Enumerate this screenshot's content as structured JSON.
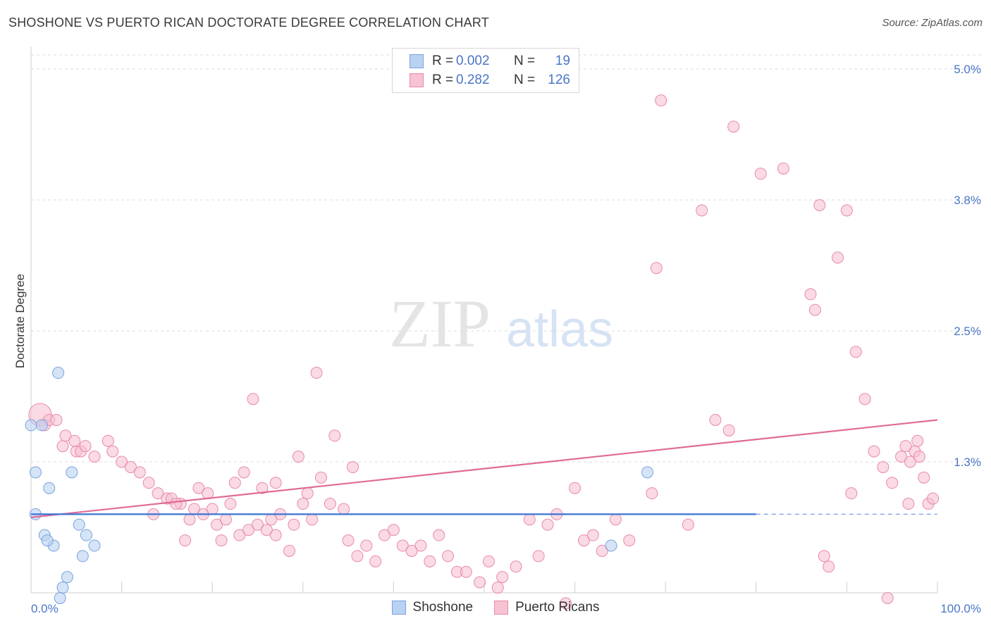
{
  "title": "SHOSHONE VS PUERTO RICAN DOCTORATE DEGREE CORRELATION CHART",
  "source": "Source: ZipAtlas.com",
  "watermark": {
    "zip": "ZIP",
    "atlas": "atlas"
  },
  "legend": {
    "rows": [
      {
        "r_label": "R =",
        "r_value": "0.002",
        "n_label": "N =",
        "n_value": "19"
      },
      {
        "r_label": "R =",
        "r_value": "0.282",
        "n_label": "N =",
        "n_value": "126"
      }
    ]
  },
  "colors": {
    "shoshone_fill": "#b9d2f2",
    "shoshone_stroke": "#7aa3dc",
    "shoshone_line": "#3a74d6",
    "pr_fill": "#f7c2d2",
    "pr_stroke": "#e98aa8",
    "pr_line": "#e06b96",
    "tick_label": "#4a76c7",
    "grid": "#dcdcdc"
  },
  "chart_data": {
    "type": "scatter",
    "ylabel": "Doctorate Degree",
    "x_ticks": [
      "0.0%",
      "100.0%"
    ],
    "y_ticks": [
      "1.3%",
      "2.5%",
      "3.8%",
      "5.0%"
    ],
    "y_tick_values": [
      1.25,
      2.5,
      3.75,
      5.0
    ],
    "xlim": [
      0,
      100
    ],
    "ylim": [
      0,
      5.2
    ],
    "series": [
      {
        "name": "Shoshone",
        "points": [
          [
            0.0,
            1.6
          ],
          [
            1.2,
            1.6
          ],
          [
            3.0,
            2.1
          ],
          [
            0.5,
            1.15
          ],
          [
            2.0,
            1.0
          ],
          [
            4.5,
            1.15
          ],
          [
            0.5,
            0.75
          ],
          [
            1.5,
            0.55
          ],
          [
            2.5,
            0.45
          ],
          [
            5.3,
            0.65
          ],
          [
            6.1,
            0.55
          ],
          [
            7.0,
            0.45
          ],
          [
            5.7,
            0.35
          ],
          [
            4.0,
            0.15
          ],
          [
            3.5,
            0.05
          ],
          [
            3.2,
            -0.05
          ],
          [
            68.0,
            1.15
          ],
          [
            64.0,
            0.45
          ],
          [
            1.8,
            0.5
          ]
        ],
        "trend": {
          "x": [
            0,
            80
          ],
          "y": [
            0.75,
            0.75
          ],
          "dashed_to": 100
        }
      },
      {
        "name": "Puerto Ricans",
        "points": [
          [
            1.0,
            1.7
          ],
          [
            1.5,
            1.6
          ],
          [
            2.0,
            1.65
          ],
          [
            2.8,
            1.65
          ],
          [
            3.5,
            1.4
          ],
          [
            3.8,
            1.5
          ],
          [
            5.0,
            1.35
          ],
          [
            5.5,
            1.35
          ],
          [
            4.8,
            1.45
          ],
          [
            6.0,
            1.4
          ],
          [
            7.0,
            1.3
          ],
          [
            8.5,
            1.45
          ],
          [
            9.0,
            1.35
          ],
          [
            10.0,
            1.25
          ],
          [
            11.0,
            1.2
          ],
          [
            12.0,
            1.15
          ],
          [
            13.0,
            1.05
          ],
          [
            14.0,
            0.95
          ],
          [
            15.0,
            0.9
          ],
          [
            16.5,
            0.85
          ],
          [
            17.5,
            0.7
          ],
          [
            18.0,
            0.8
          ],
          [
            19.0,
            0.75
          ],
          [
            20.0,
            0.8
          ],
          [
            20.5,
            0.65
          ],
          [
            21.0,
            0.5
          ],
          [
            21.5,
            0.7
          ],
          [
            22.0,
            0.85
          ],
          [
            23.0,
            0.55
          ],
          [
            24.0,
            0.6
          ],
          [
            25.0,
            0.65
          ],
          [
            26.0,
            0.6
          ],
          [
            27.0,
            0.55
          ],
          [
            27.5,
            0.75
          ],
          [
            28.5,
            0.4
          ],
          [
            29.0,
            0.65
          ],
          [
            30.0,
            0.85
          ],
          [
            31.0,
            0.7
          ],
          [
            32.0,
            1.1
          ],
          [
            33.0,
            0.85
          ],
          [
            34.5,
            0.8
          ],
          [
            35.0,
            0.5
          ],
          [
            36.0,
            0.35
          ],
          [
            37.0,
            0.45
          ],
          [
            38.0,
            0.3
          ],
          [
            39.0,
            0.55
          ],
          [
            40.0,
            0.6
          ],
          [
            41.0,
            0.45
          ],
          [
            42.0,
            0.4
          ],
          [
            43.0,
            0.45
          ],
          [
            44.0,
            0.3
          ],
          [
            45.0,
            0.55
          ],
          [
            46.0,
            0.35
          ],
          [
            47.0,
            0.2
          ],
          [
            48.0,
            0.2
          ],
          [
            49.5,
            0.1
          ],
          [
            50.5,
            0.3
          ],
          [
            51.5,
            0.05
          ],
          [
            52.0,
            0.15
          ],
          [
            53.5,
            0.25
          ],
          [
            55.0,
            0.7
          ],
          [
            56.0,
            0.35
          ],
          [
            57.0,
            0.65
          ],
          [
            58.0,
            0.75
          ],
          [
            59.0,
            -0.1
          ],
          [
            61.0,
            0.5
          ],
          [
            62.0,
            0.55
          ],
          [
            63.0,
            0.4
          ],
          [
            64.5,
            0.7
          ],
          [
            66.0,
            0.5
          ],
          [
            69.0,
            3.1
          ],
          [
            69.5,
            4.7
          ],
          [
            74.0,
            3.65
          ],
          [
            77.5,
            4.45
          ],
          [
            80.5,
            4.0
          ],
          [
            83.0,
            4.05
          ],
          [
            86.0,
            2.85
          ],
          [
            86.5,
            2.7
          ],
          [
            87.0,
            3.7
          ],
          [
            89.0,
            3.2
          ],
          [
            90.0,
            3.65
          ],
          [
            91.0,
            2.3
          ],
          [
            92.0,
            1.85
          ],
          [
            93.0,
            1.35
          ],
          [
            94.0,
            1.2
          ],
          [
            95.0,
            1.05
          ],
          [
            96.0,
            1.3
          ],
          [
            97.0,
            1.25
          ],
          [
            97.5,
            1.35
          ],
          [
            98.0,
            1.3
          ],
          [
            99.0,
            0.85
          ],
          [
            99.5,
            0.9
          ],
          [
            98.5,
            1.1
          ],
          [
            97.8,
            1.45
          ],
          [
            96.5,
            1.4
          ],
          [
            60.0,
            1.0
          ],
          [
            68.5,
            0.95
          ],
          [
            72.5,
            0.65
          ],
          [
            75.5,
            1.65
          ],
          [
            77.0,
            1.55
          ],
          [
            87.5,
            0.35
          ],
          [
            88.0,
            0.25
          ],
          [
            90.5,
            0.95
          ],
          [
            94.5,
            -0.05
          ],
          [
            96.8,
            0.85
          ],
          [
            24.5,
            1.85
          ],
          [
            27.0,
            1.05
          ],
          [
            29.5,
            1.3
          ],
          [
            30.5,
            0.95
          ],
          [
            31.5,
            2.1
          ],
          [
            17.0,
            0.5
          ],
          [
            18.5,
            1.0
          ],
          [
            19.5,
            0.95
          ],
          [
            33.5,
            1.5
          ],
          [
            35.5,
            1.2
          ],
          [
            13.5,
            0.75
          ],
          [
            15.5,
            0.9
          ],
          [
            16.0,
            0.85
          ],
          [
            22.5,
            1.05
          ],
          [
            26.5,
            0.7
          ],
          [
            25.5,
            1.0
          ],
          [
            23.5,
            1.15
          ]
        ],
        "trend": {
          "x": [
            0,
            100
          ],
          "y": [
            0.72,
            1.65
          ]
        }
      }
    ]
  }
}
